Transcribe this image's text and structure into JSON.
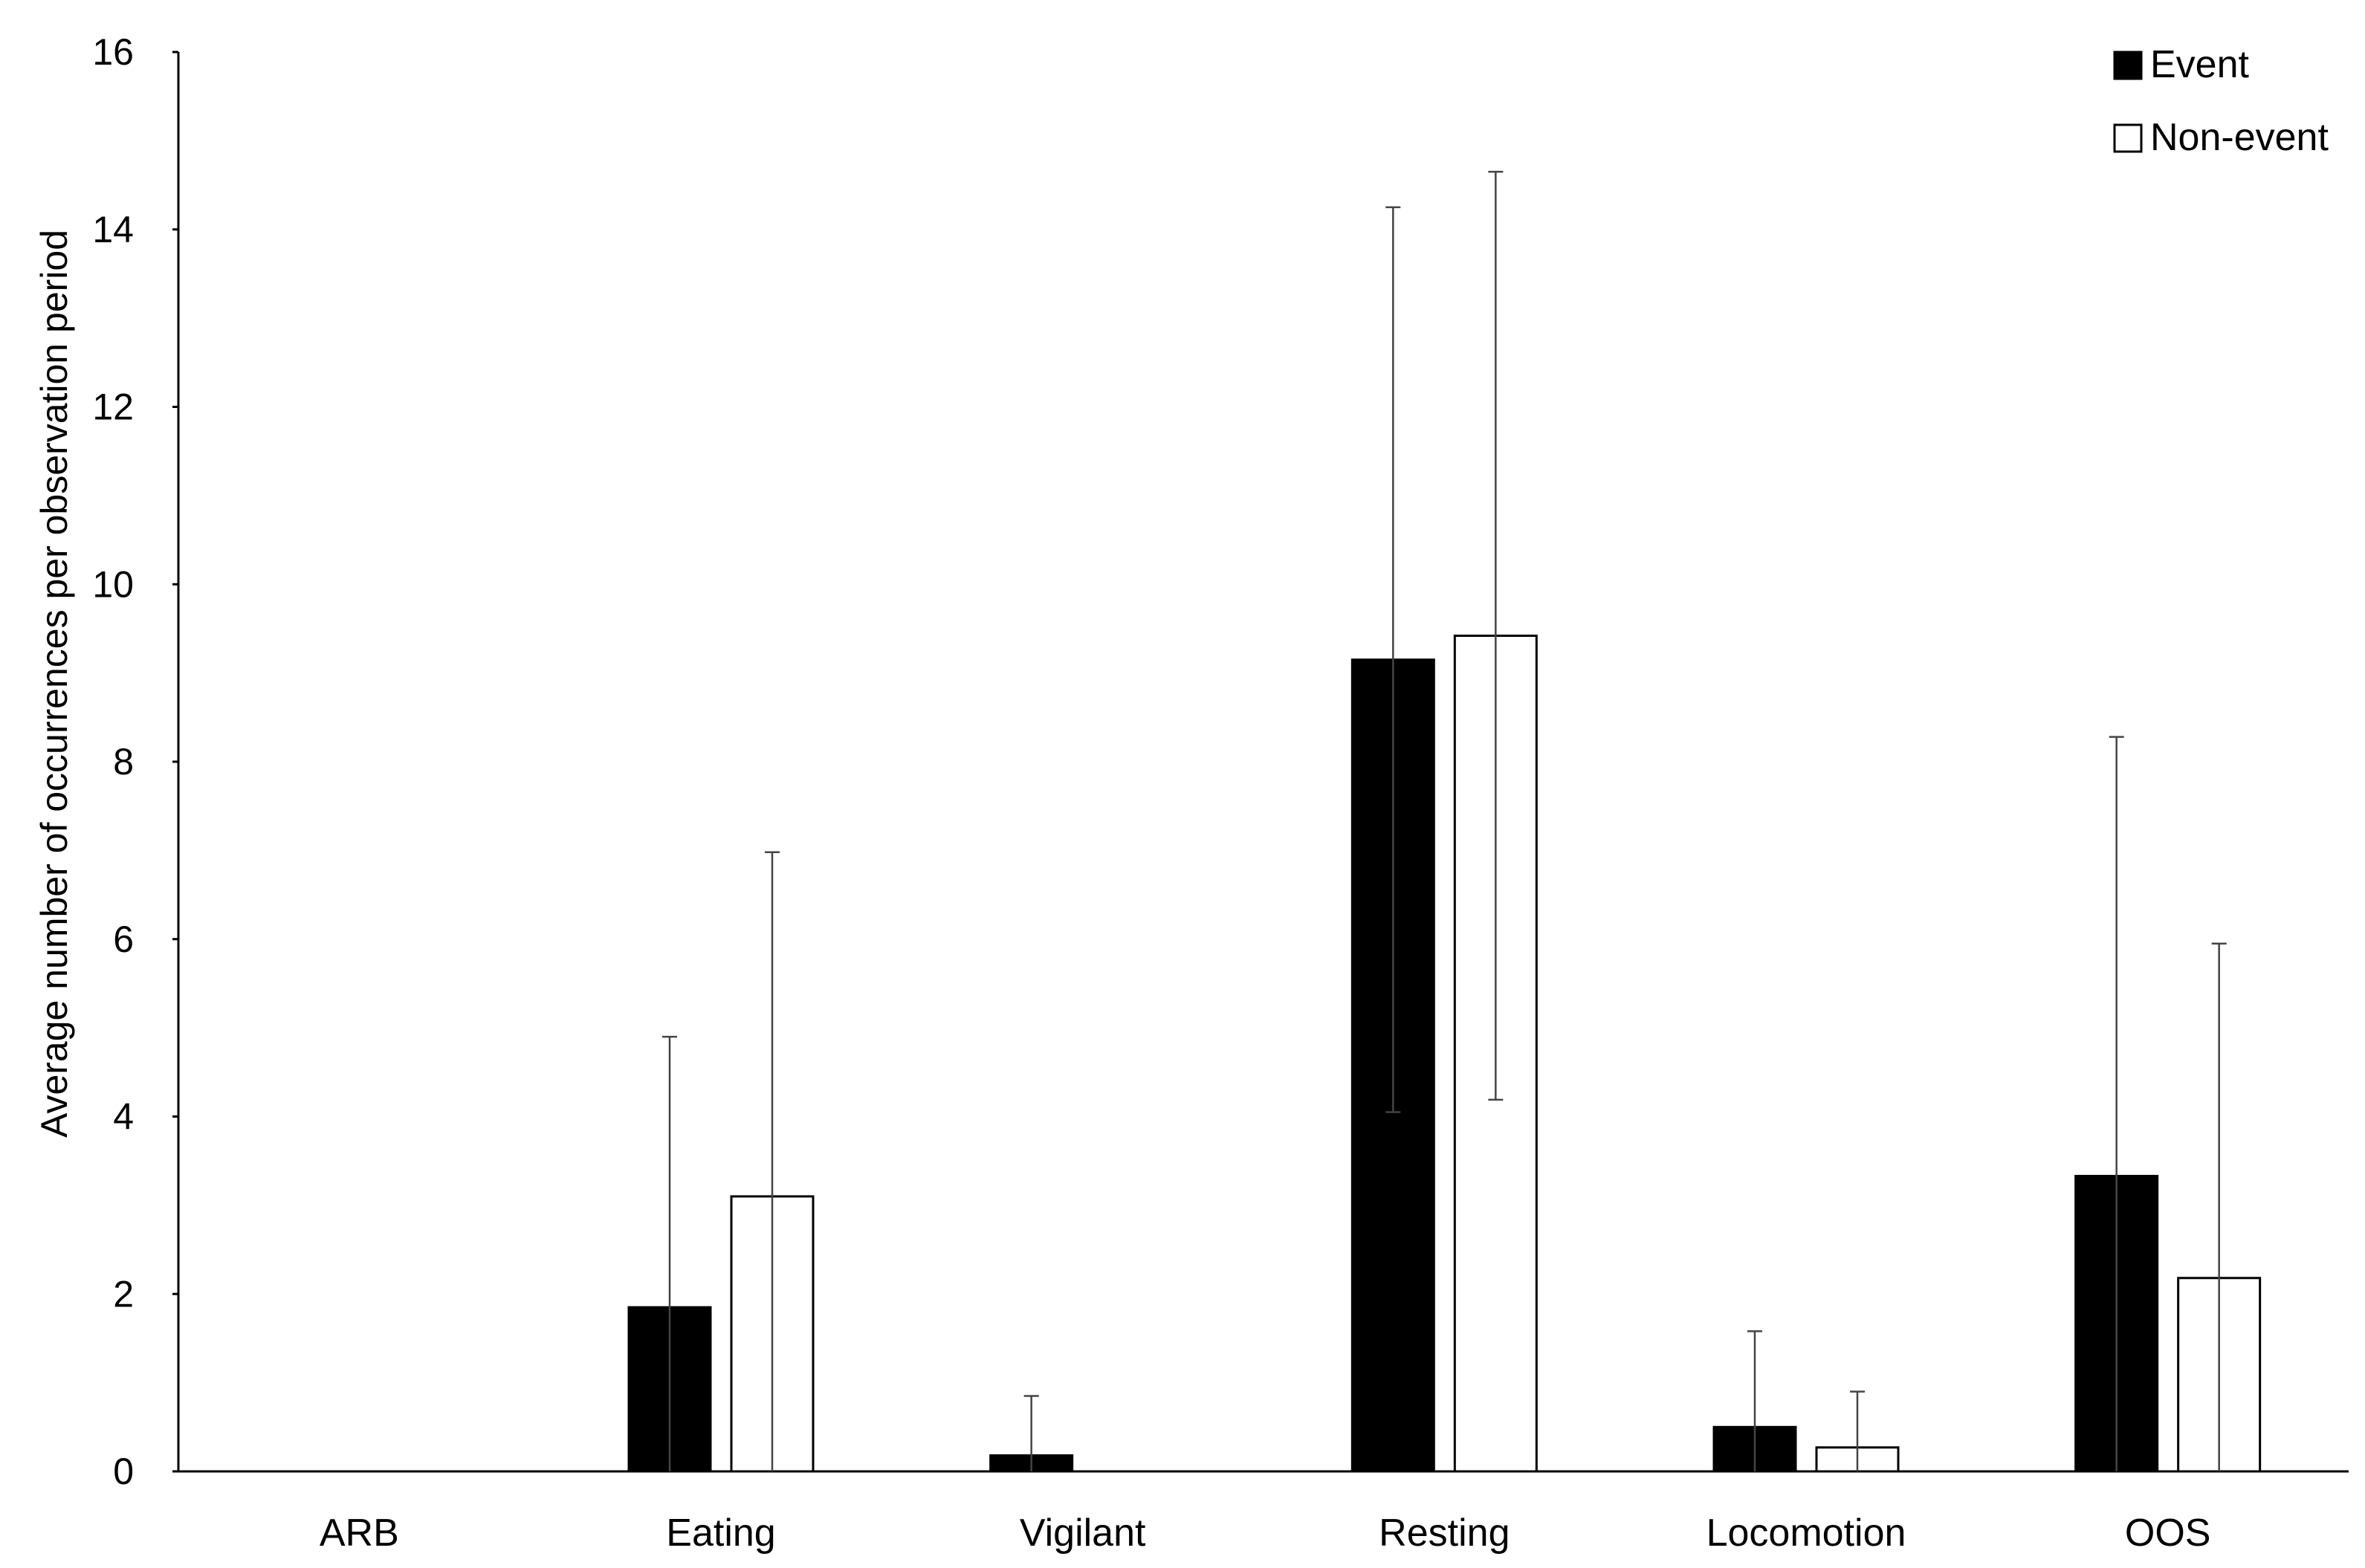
{
  "chart_data": {
    "type": "bar",
    "title": "",
    "xlabel": "",
    "ylabel": "Average number of occurrences per observation period",
    "ylim": [
      0,
      16
    ],
    "yticks": [
      0,
      2,
      4,
      6,
      8,
      10,
      12,
      14,
      16
    ],
    "categories": [
      "ARB",
      "Eating",
      "Vigilant",
      "Resting",
      "Locomotion",
      "OOS"
    ],
    "series": [
      {
        "name": "Event",
        "color": "#000000",
        "values": [
          0,
          1.85,
          0.18,
          9.15,
          0.5,
          3.33
        ],
        "error_upper": [
          0,
          4.9,
          0.85,
          14.25,
          1.58,
          8.28
        ]
      },
      {
        "name": "Non-event",
        "color": "#ffffff",
        "values": [
          0,
          3.1,
          0,
          9.42,
          0.27,
          2.18
        ],
        "error_upper": [
          0,
          6.98,
          0,
          14.65,
          0.9,
          5.95
        ]
      }
    ],
    "grid": false,
    "legend_position": "top-right"
  }
}
